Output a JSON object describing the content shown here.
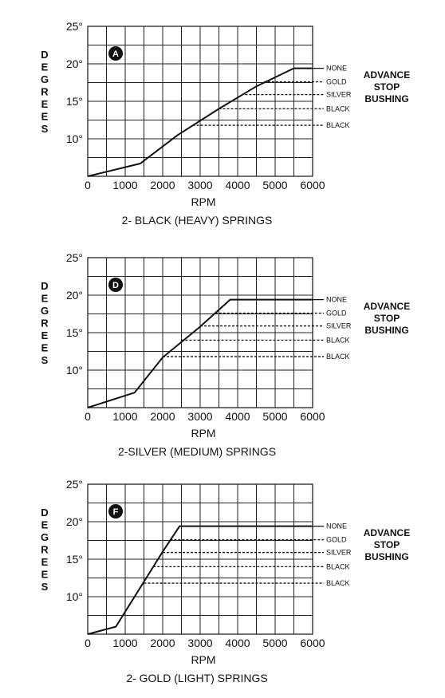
{
  "chart_data": [
    {
      "type": "line",
      "badge": "A",
      "caption": "2- BLACK (HEAVY) SPRINGS",
      "xlabel": "RPM",
      "ylabel": "DEGREES",
      "xlim": [
        0,
        6000
      ],
      "ylim": [
        5,
        25
      ],
      "x_ticks": [
        "0",
        "1000",
        "2000",
        "3000",
        "4000",
        "5000",
        "6000"
      ],
      "y_ticks": [
        "10°",
        "15°",
        "20°",
        "25°"
      ],
      "curve": {
        "x": [
          0,
          1400,
          2400,
          3500,
          4500,
          5500,
          6000
        ],
        "y": [
          5,
          6.7,
          10.5,
          14,
          17,
          19.4,
          19.4
        ]
      },
      "stops": [
        {
          "label": "NONE",
          "y": 19.4,
          "x_start": 5500,
          "style": "solid"
        },
        {
          "label": "GOLD",
          "y": 17.6,
          "x_start": 4700,
          "style": "dashed"
        },
        {
          "label": "SILVER",
          "y": 15.9,
          "x_start": 4200,
          "style": "dashed"
        },
        {
          "label": "BLACK",
          "y": 14.0,
          "x_start": 3500,
          "style": "dashed"
        },
        {
          "label": "BLACK",
          "y": 11.8,
          "x_start": 2800,
          "style": "dashed"
        }
      ],
      "side_label": [
        "ADVANCE",
        "STOP",
        "BUSHING"
      ]
    },
    {
      "type": "line",
      "badge": "D",
      "caption": "2-SILVER (MEDIUM) SPRINGS",
      "xlabel": "RPM",
      "ylabel": "DEGREES",
      "xlim": [
        0,
        6000
      ],
      "ylim": [
        5,
        25
      ],
      "x_ticks": [
        "0",
        "1000",
        "2000",
        "3000",
        "4000",
        "5000",
        "6000"
      ],
      "y_ticks": [
        "10°",
        "15°",
        "20°",
        "25°"
      ],
      "curve": {
        "x": [
          0,
          1250,
          2000,
          3000,
          3800,
          6000
        ],
        "y": [
          5,
          7.0,
          11.7,
          15.8,
          19.4,
          19.4
        ]
      },
      "stops": [
        {
          "label": "NONE",
          "y": 19.4,
          "x_start": 3800,
          "style": "solid"
        },
        {
          "label": "GOLD",
          "y": 17.6,
          "x_start": 3400,
          "style": "dashed"
        },
        {
          "label": "SILVER",
          "y": 15.9,
          "x_start": 3000,
          "style": "dashed"
        },
        {
          "label": "BLACK",
          "y": 14.0,
          "x_start": 2500,
          "style": "dashed"
        },
        {
          "label": "BLACK",
          "y": 11.8,
          "x_start": 2000,
          "style": "dashed"
        }
      ],
      "side_label": [
        "ADVANCE",
        "STOP",
        "BUSHING"
      ]
    },
    {
      "type": "line",
      "badge": "F",
      "caption": "2- GOLD (LIGHT) SPRINGS",
      "xlabel": "RPM",
      "ylabel": "DEGREES",
      "xlim": [
        0,
        6000
      ],
      "ylim": [
        5,
        25
      ],
      "x_ticks": [
        "0",
        "1000",
        "2000",
        "3000",
        "4000",
        "5000",
        "6000"
      ],
      "y_ticks": [
        "10°",
        "15°",
        "20°",
        "25°"
      ],
      "curve": {
        "x": [
          0,
          750,
          1500,
          2000,
          2450,
          6000
        ],
        "y": [
          5,
          6.0,
          12.0,
          16.0,
          19.4,
          19.4
        ]
      },
      "stops": [
        {
          "label": "NONE",
          "y": 19.4,
          "x_start": 2450,
          "style": "solid"
        },
        {
          "label": "GOLD",
          "y": 17.6,
          "x_start": 2200,
          "style": "dashed"
        },
        {
          "label": "SILVER",
          "y": 15.9,
          "x_start": 2000,
          "style": "dashed"
        },
        {
          "label": "BLACK",
          "y": 14.0,
          "x_start": 1750,
          "style": "dashed"
        },
        {
          "label": "BLACK",
          "y": 11.8,
          "x_start": 1500,
          "style": "dashed"
        }
      ],
      "side_label": [
        "ADVANCE",
        "STOP",
        "BUSHING"
      ]
    }
  ]
}
